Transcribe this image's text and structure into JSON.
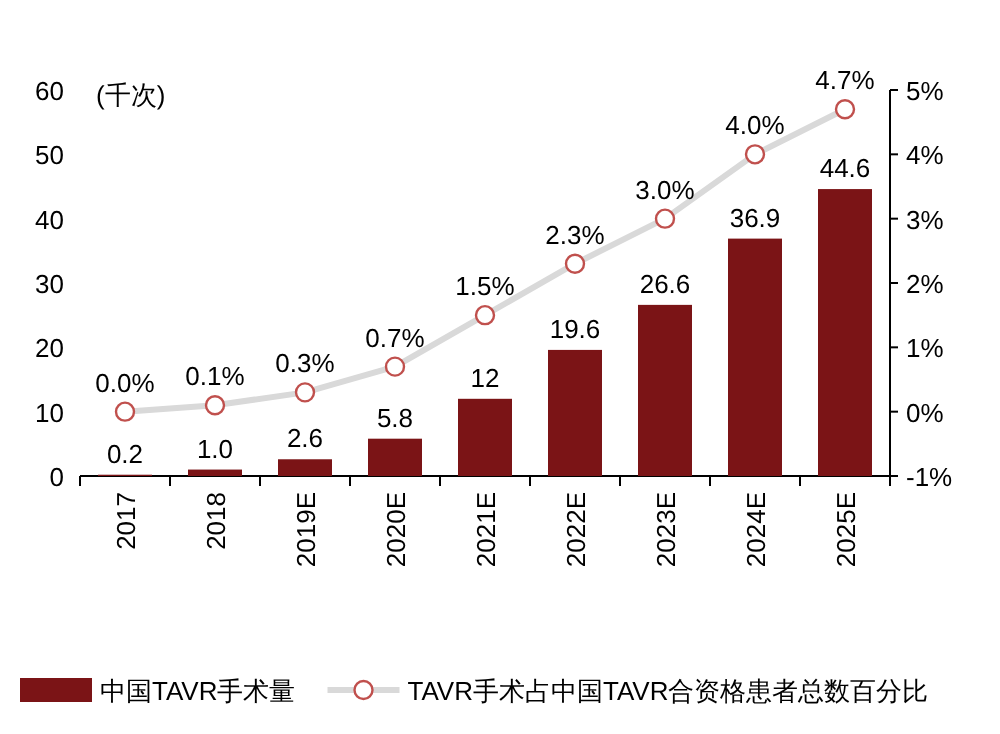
{
  "chart_data": {
    "type": "bar",
    "ylabel": "(千次)",
    "categories": [
      "2017",
      "2018",
      "2019E",
      "2020E",
      "2021E",
      "2022E",
      "2023E",
      "2024E",
      "2025E"
    ],
    "series": [
      {
        "name": "中国TAVR手术量",
        "color": "#7b1416",
        "values": [
          0.2,
          1.0,
          2.6,
          5.8,
          12,
          19.6,
          26.6,
          36.9,
          44.6
        ],
        "value_labels": [
          "0.2",
          "1.0",
          "2.6",
          "5.8",
          "12",
          "19.6",
          "26.6",
          "36.9",
          "44.6"
        ]
      },
      {
        "name": "TAVR手术占中国TAVR合资格患者总数百分比",
        "type": "line",
        "axis": "y2",
        "color": "#d9d9d9",
        "marker": "circle",
        "values": [
          0.0,
          0.1,
          0.3,
          0.7,
          1.5,
          2.3,
          3.0,
          4.0,
          4.7
        ],
        "value_labels": [
          "0.0%",
          "0.1%",
          "0.3%",
          "0.7%",
          "1.5%",
          "2.3%",
          "3.0%",
          "4.0%",
          "4.7%"
        ]
      }
    ],
    "ylim": [
      0,
      60
    ],
    "yticks": [
      0,
      10,
      20,
      30,
      40,
      50,
      60
    ],
    "y2lim": [
      -1,
      5
    ],
    "y2ticks": [
      {
        "value": -1,
        "label": "-1%"
      },
      {
        "value": 0,
        "label": "0%"
      },
      {
        "value": 1,
        "label": "1%"
      },
      {
        "value": 2,
        "label": "2%"
      },
      {
        "value": 3,
        "label": "3%"
      },
      {
        "value": 4,
        "label": "4%"
      },
      {
        "value": 5,
        "label": "5%"
      }
    ],
    "legend": "bottom",
    "grid": false
  }
}
